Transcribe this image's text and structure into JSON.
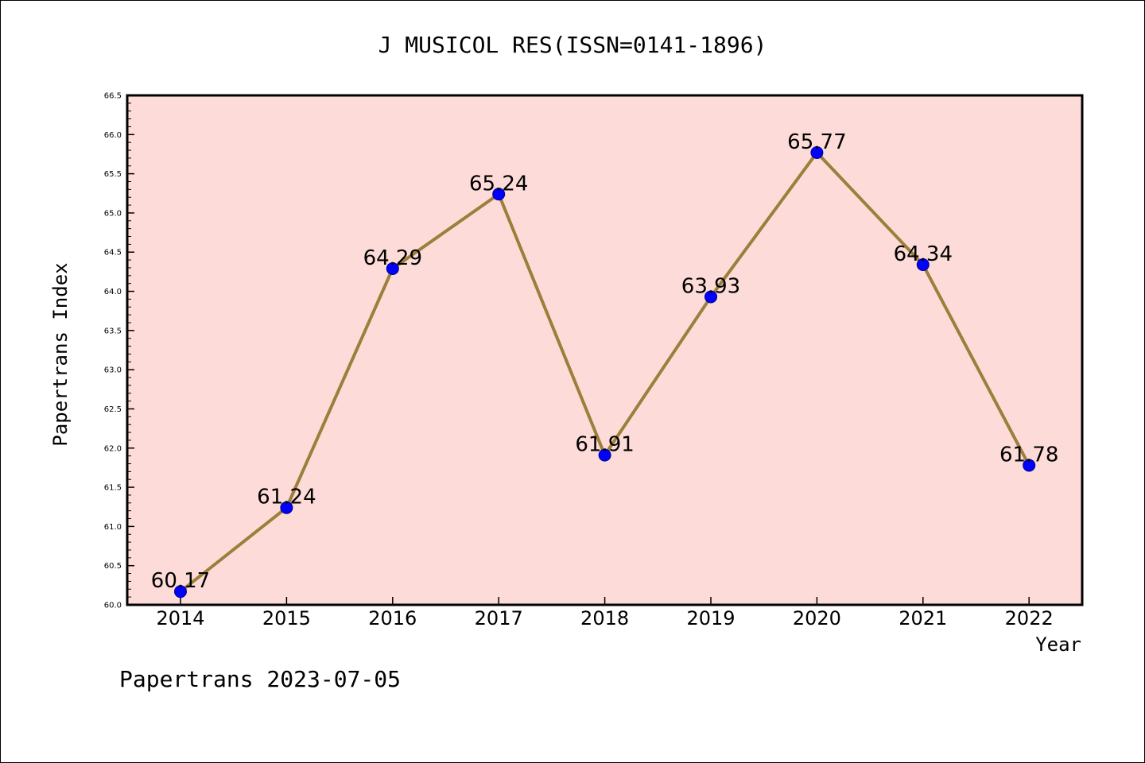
{
  "chart_data": {
    "type": "line",
    "title": "J MUSICOL RES(ISSN=0141-1896)",
    "xlabel": "Year",
    "ylabel": "Papertrans Index",
    "categories": [
      "2014",
      "2015",
      "2016",
      "2017",
      "2018",
      "2019",
      "2020",
      "2021",
      "2022"
    ],
    "series": [
      {
        "values": [
          60.17,
          61.24,
          64.29,
          65.24,
          61.91,
          63.93,
          65.77,
          64.34,
          61.78
        ],
        "data_labels": [
          "60.17",
          "61.24",
          "64.29",
          "65.24",
          "61.91",
          "63.93",
          "65.77",
          "64.34",
          "61.78"
        ]
      }
    ],
    "ylim": [
      60.0,
      66.5
    ],
    "yticks": [
      "60.0",
      "60.5",
      "61.0",
      "61.5",
      "62.0",
      "62.5",
      "63.0",
      "63.5",
      "64.0",
      "64.5",
      "65.0",
      "65.5",
      "66.0",
      "66.5"
    ],
    "grid": false,
    "colors": {
      "plot_background": "#fddbd8",
      "line": "#9b7f3a",
      "marker": "#0000ff",
      "marker_edge": "#00008b"
    }
  },
  "footer": "Papertrans 2023-07-05"
}
